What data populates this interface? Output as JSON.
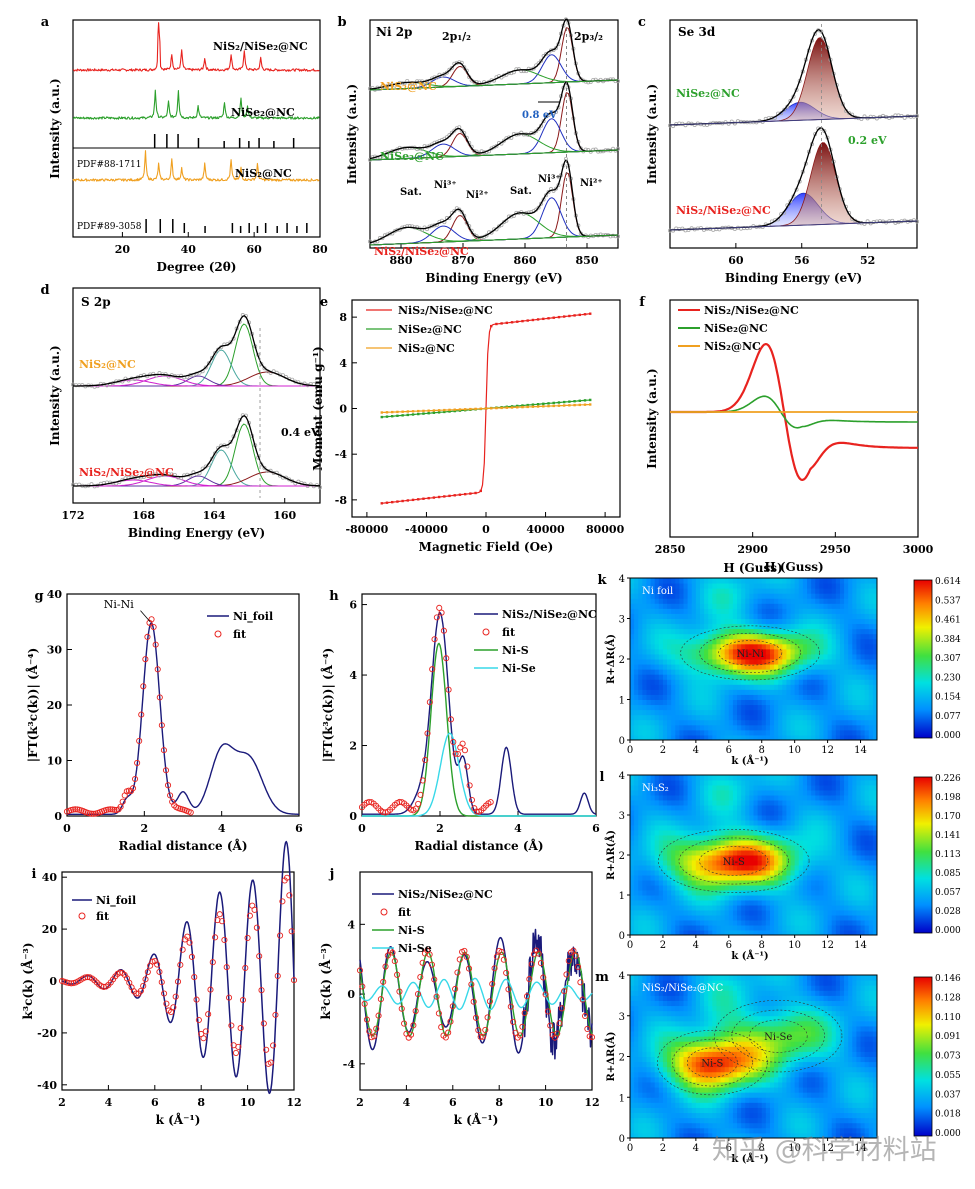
{
  "figure": {
    "watermark": "知乎 @科学材料站",
    "colors": {
      "red": "#e8231f",
      "green": "#2ca02c",
      "orange": "#f0a020",
      "navy": "#1a1a7a",
      "blue": "#2030c0",
      "cyan": "#38d8e8",
      "brown": "#8b1a1a",
      "magenta": "#d020d0",
      "teal": "#4aa8a0",
      "gray": "#888888"
    }
  },
  "chart_data": [
    {
      "id": "a",
      "type": "line",
      "label": "a",
      "xlabel": "Degree (2θ)",
      "ylabel": "Intensity (a.u.)",
      "xlim": [
        5,
        80
      ],
      "xticks": [
        20,
        40,
        60,
        80
      ],
      "series": [
        {
          "name": "NiS2/NiSe2@NC",
          "color": "red",
          "peaks": [
            31,
            35,
            38,
            45,
            53,
            57,
            62
          ]
        },
        {
          "name": "NiSe2@NC",
          "color": "green",
          "peaks": [
            30,
            34,
            37,
            43,
            51,
            56,
            58
          ]
        },
        {
          "name": "NiS2@NC",
          "color": "orange",
          "peaks": [
            27,
            31,
            35,
            38,
            45,
            53,
            56,
            61
          ]
        }
      ],
      "references": [
        {
          "name": "PDF#88-1711",
          "lines": [
            29.8,
            33.5,
            36.9,
            43.1,
            50.9,
            55.6,
            58.4,
            61.5,
            66,
            72
          ]
        },
        {
          "name": "PDF#89-3058",
          "lines": [
            27.2,
            31.5,
            35.3,
            38.8,
            45.1,
            53.4,
            55.9,
            58.5,
            61.0,
            63.5,
            67,
            70,
            73,
            76
          ]
        }
      ],
      "labels": {
        "s1": "NiS₂/NiSe₂@NC",
        "s2": "NiSe₂@NC",
        "s3": "NiS₂@NC",
        "r1": "PDF#88-1711",
        "r2": "PDF#89-3058"
      }
    },
    {
      "id": "b",
      "type": "line",
      "label": "b",
      "title": "Ni 2p",
      "xlabel": "Binding Energy (eV)",
      "ylabel": "Intensity (a.u.)",
      "xlim": [
        885,
        845
      ],
      "xticks": [
        880,
        870,
        860,
        850
      ],
      "annotations": [
        "2p₁/₂",
        "2p₃/₂",
        "0.8 eV",
        "Sat.",
        "Ni³⁺",
        "Ni²⁺",
        "Sat.",
        "Ni³⁺",
        "Ni²⁺"
      ],
      "samples": [
        "NiS₂@NC",
        "NiSe₂@NC",
        "NiS₂/NiSe₂@NC"
      ]
    },
    {
      "id": "c",
      "type": "line",
      "label": "c",
      "title": "Se 3d",
      "xlabel": "Binding Energy (eV)",
      "ylabel": "Intensity (a.u.)",
      "xlim": [
        64,
        49
      ],
      "xticks": [
        60,
        56,
        52
      ],
      "annotations": [
        "0.2 eV"
      ],
      "samples": [
        "NiSe₂@NC",
        "NiS₂/NiSe₂@NC"
      ]
    },
    {
      "id": "d",
      "type": "line",
      "label": "d",
      "title": "S 2p",
      "xlabel": "Binding Energy (eV)",
      "ylabel": "Intensity (a.u.)",
      "xlim": [
        172,
        158
      ],
      "xticks": [
        172,
        168,
        164,
        160
      ],
      "annotations": [
        "0.4 eV"
      ],
      "samples": [
        "NiS₂@NC",
        "NiS₂/NiSe₂@NC"
      ]
    },
    {
      "id": "e",
      "type": "line",
      "label": "e",
      "xlabel": "Magnetic Field (Oe)",
      "ylabel": "Moment (emu g⁻¹)",
      "xlim": [
        -90000,
        90000
      ],
      "ylim": [
        -9.5,
        9.5
      ],
      "xticks": [
        -80000,
        -40000,
        0,
        40000,
        80000
      ],
      "yticks": [
        -8,
        -4,
        0,
        4,
        8
      ],
      "series": [
        {
          "name": "NiS₂/NiSe₂@NC",
          "color": "red",
          "ms": 8.3,
          "slope": 0.85
        },
        {
          "name": "NiSe₂@NC",
          "color": "green",
          "ms": 0.75,
          "slope": 0
        },
        {
          "name": "NiS₂@NC",
          "color": "orange",
          "ms": 0.35,
          "slope": 0
        }
      ]
    },
    {
      "id": "f",
      "type": "line",
      "label": "f",
      "xlabel": "H (Guss)",
      "ylabel": "Intensity (a.u.)",
      "xlim": [
        2850,
        3000
      ],
      "xticks": [
        2850,
        2900,
        2950,
        3000
      ],
      "series": [
        {
          "name": "NiS₂/NiSe₂@NC",
          "color": "red"
        },
        {
          "name": "NiSe₂@NC",
          "color": "green"
        },
        {
          "name": "NiS₂@NC",
          "color": "orange"
        }
      ]
    },
    {
      "id": "g",
      "type": "line",
      "label": "g",
      "xlabel": "Radial distance (Å)",
      "ylabel": "|FT(k³c(k))| (Å⁻⁴)",
      "xlim": [
        0,
        6
      ],
      "ylim": [
        0,
        40
      ],
      "xticks": [
        0,
        2,
        4,
        6
      ],
      "yticks": [
        0,
        10,
        20,
        30,
        40
      ],
      "series": [
        {
          "name": "Ni_foil",
          "color": "navy"
        },
        {
          "name": "fit",
          "color": "red"
        }
      ],
      "annotations": [
        "Ni-Ni"
      ]
    },
    {
      "id": "h",
      "type": "line",
      "label": "h",
      "xlabel": "Radial distance (Å)",
      "ylabel": "|FT(k³c(k))| (Å⁻⁴)",
      "xlim": [
        0,
        6
      ],
      "ylim": [
        0,
        6.3
      ],
      "xticks": [
        0,
        2,
        4,
        6
      ],
      "yticks": [
        0,
        2,
        4,
        6
      ],
      "series": [
        {
          "name": "NiS₂/NiSe₂@NC",
          "color": "navy"
        },
        {
          "name": "fit",
          "color": "red"
        },
        {
          "name": "Ni-S",
          "color": "green"
        },
        {
          "name": "Ni-Se",
          "color": "cyan"
        }
      ]
    },
    {
      "id": "i",
      "type": "line",
      "label": "i",
      "xlabel": "k (Å⁻¹)",
      "ylabel": "k³c(k) (Å⁻³)",
      "xlim": [
        2,
        12
      ],
      "ylim": [
        -42,
        42
      ],
      "xticks": [
        2,
        4,
        6,
        8,
        10,
        12
      ],
      "yticks": [
        -40,
        -20,
        0,
        20,
        40
      ],
      "series": [
        {
          "name": "Ni_foil",
          "color": "navy"
        },
        {
          "name": "fit",
          "color": "red"
        }
      ]
    },
    {
      "id": "j",
      "type": "line",
      "label": "j",
      "xlabel": "k (Å⁻¹)",
      "ylabel": "k³c(k) (Å⁻³)",
      "xlim": [
        2,
        12
      ],
      "ylim": [
        -5.5,
        7
      ],
      "xticks": [
        2,
        4,
        6,
        8,
        10,
        12
      ],
      "yticks": [
        -4,
        0,
        4
      ],
      "series": [
        {
          "name": "NiS₂/NiSe₂@NC",
          "color": "navy"
        },
        {
          "name": "fit",
          "color": "red"
        },
        {
          "name": "Ni-S",
          "color": "green"
        },
        {
          "name": "Ni-Se",
          "color": "cyan"
        }
      ]
    },
    {
      "id": "k",
      "type": "heatmap",
      "label": "k",
      "title": "Ni foil",
      "xlabel": "k (Å⁻¹)",
      "ylabel": "R+ΔR(Å)",
      "xlim": [
        0,
        15
      ],
      "ylim": [
        0,
        4
      ],
      "xticks": [
        0,
        2,
        4,
        6,
        8,
        10,
        12,
        14
      ],
      "yticks": [
        0,
        1,
        2,
        3,
        4
      ],
      "colorbar": [
        0.614,
        0.537,
        0.461,
        0.384,
        0.307,
        0.23,
        0.154,
        0.077,
        0.0
      ],
      "blobs": [
        {
          "label": "Ni-Ni",
          "kc": 7.3,
          "rc": 2.15,
          "sk": 2.4,
          "sr": 0.38,
          "a": 1.0
        }
      ]
    },
    {
      "id": "l",
      "type": "heatmap",
      "label": "l",
      "title": "Ni₃S₂",
      "xlabel": "k (Å⁻¹)",
      "ylabel": "R+ΔR(Å)",
      "xlim": [
        0,
        15
      ],
      "ylim": [
        0,
        4
      ],
      "xticks": [
        0,
        2,
        4,
        6,
        8,
        10,
        12,
        14
      ],
      "yticks": [
        0,
        1,
        2,
        3,
        4
      ],
      "colorbar": [
        0.226,
        0.198,
        0.17,
        0.141,
        0.113,
        0.085,
        0.057,
        0.028,
        0.0
      ],
      "blobs": [
        {
          "label": "Ni-S",
          "kc": 6.3,
          "rc": 1.85,
          "sk": 2.6,
          "sr": 0.45,
          "a": 1.0
        }
      ]
    },
    {
      "id": "m",
      "type": "heatmap",
      "label": "m",
      "title": "NiS₂/NiSe₂@NC",
      "xlabel": "k (Å⁻¹)",
      "ylabel": "R+ΔR(Å)",
      "xlim": [
        0,
        15
      ],
      "ylim": [
        0,
        4
      ],
      "xticks": [
        0,
        2,
        4,
        6,
        8,
        10,
        12,
        14
      ],
      "yticks": [
        0,
        1,
        2,
        3,
        4
      ],
      "colorbar": [
        0.146,
        0.128,
        0.11,
        0.091,
        0.073,
        0.055,
        0.037,
        0.018,
        0.0
      ],
      "blobs": [
        {
          "label": "Ni-S",
          "kc": 5.0,
          "rc": 1.85,
          "sk": 1.9,
          "sr": 0.45,
          "a": 1.0
        },
        {
          "label": "Ni-Se",
          "kc": 9.0,
          "rc": 2.5,
          "sk": 2.2,
          "sr": 0.5,
          "a": 0.45
        }
      ]
    }
  ]
}
